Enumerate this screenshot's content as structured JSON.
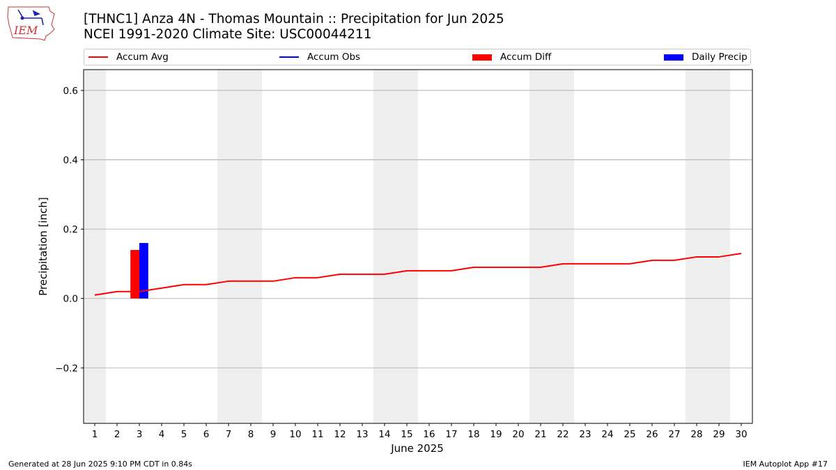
{
  "header": {
    "title_line1": "[THNC1] Anza 4N - Thomas Mountain :: Precipitation for Jun 2025",
    "title_line2": "NCEI 1991-2020 Climate Site: USC00044211",
    "logo_text": "IEM"
  },
  "legend": {
    "accum_avg": "Accum Avg",
    "accum_obs": "Accum Obs",
    "accum_diff": "Accum Diff",
    "daily_precip": "Daily Precip"
  },
  "colors": {
    "accum_avg": "#ff0000",
    "accum_obs": "#0000ff",
    "accum_diff": "#ff0000",
    "daily_precip": "#0000ff",
    "weekend_band": "#eeeeee",
    "grid": "#b0b0b0"
  },
  "footer": {
    "generated": "Generated at 28 Jun 2025 9:10 PM CDT in 0.84s",
    "app": "IEM Autoplot App #17"
  },
  "chart_data": {
    "type": "line",
    "xlabel": "June 2025",
    "ylabel": "Precipitation [inch]",
    "x": [
      1,
      2,
      3,
      4,
      5,
      6,
      7,
      8,
      9,
      10,
      11,
      12,
      13,
      14,
      15,
      16,
      17,
      18,
      19,
      20,
      21,
      22,
      23,
      24,
      25,
      26,
      27,
      28,
      29,
      30
    ],
    "xlim": [
      0.5,
      30.5
    ],
    "ylim": [
      -0.36,
      0.66
    ],
    "yticks": [
      -0.2,
      0.0,
      0.2,
      0.4,
      0.6
    ],
    "ytick_labels": [
      "−0.2",
      "0.0",
      "0.2",
      "0.4",
      "0.6"
    ],
    "grid": "horizontal",
    "weekend_days": [
      1,
      7,
      8,
      14,
      15,
      21,
      22,
      28,
      29
    ],
    "series": [
      {
        "name": "Accum Avg",
        "kind": "line",
        "values": [
          0.01,
          0.02,
          0.02,
          0.03,
          0.04,
          0.04,
          0.05,
          0.05,
          0.05,
          0.06,
          0.06,
          0.07,
          0.07,
          0.07,
          0.08,
          0.08,
          0.08,
          0.09,
          0.09,
          0.09,
          0.09,
          0.1,
          0.1,
          0.1,
          0.1,
          0.11,
          0.11,
          0.12,
          0.12,
          0.13
        ]
      },
      {
        "name": "Accum Diff",
        "kind": "bar",
        "points": [
          {
            "x": 3,
            "y": 0.14
          }
        ]
      },
      {
        "name": "Daily Precip",
        "kind": "bar",
        "points": [
          {
            "x": 3,
            "y": 0.16
          }
        ]
      }
    ]
  }
}
